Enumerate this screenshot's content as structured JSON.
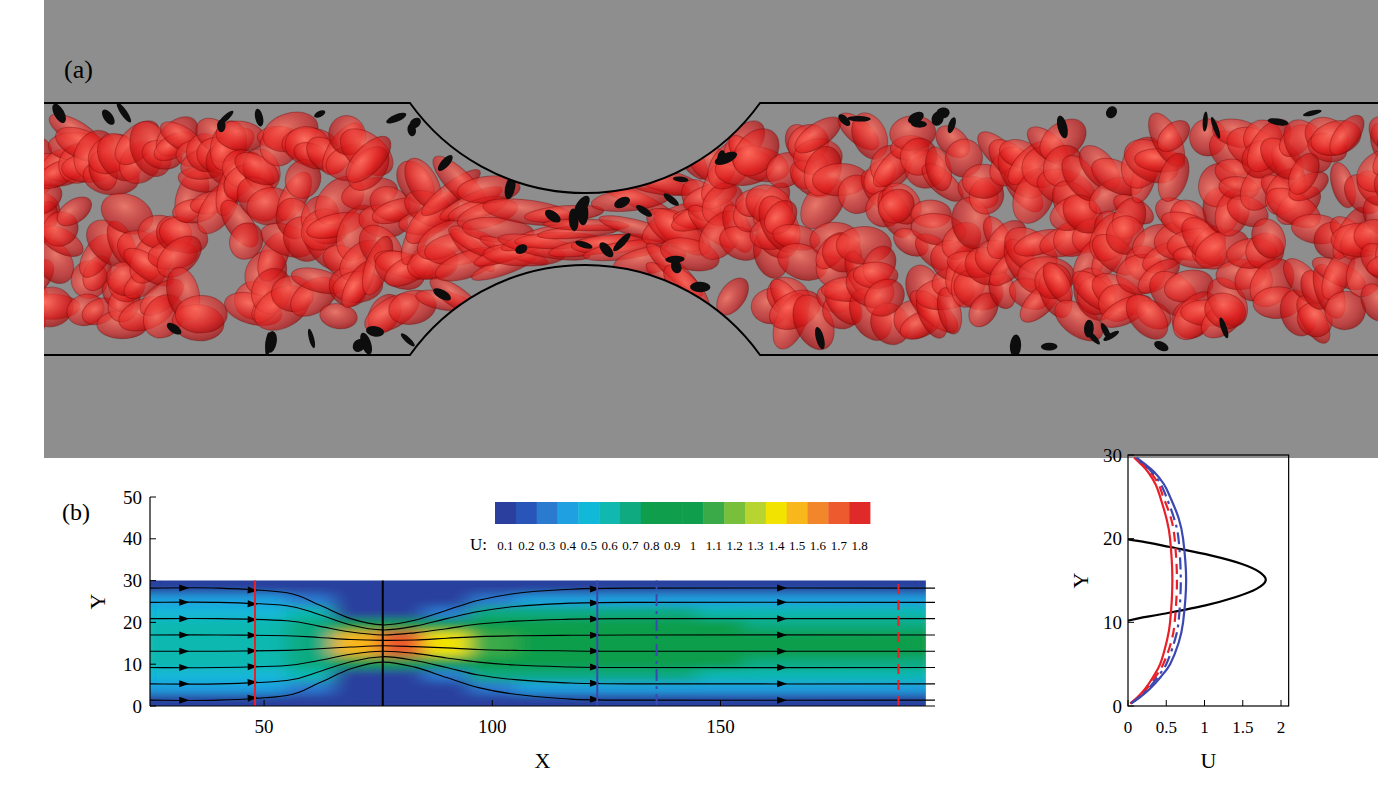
{
  "illustration": {
    "label": "(a)"
  },
  "chart_data": [
    {
      "type": "contour",
      "label": "(b)",
      "x_label": "X",
      "y_label": "Y",
      "xlim": [
        25,
        197
      ],
      "ylim": [
        0,
        50
      ],
      "xticks": [
        50,
        100,
        150
      ],
      "yticks": [
        0,
        10,
        20,
        30,
        40,
        50
      ],
      "x": [
        30,
        40,
        50,
        60,
        70,
        80,
        90,
        100,
        110,
        120,
        130,
        140,
        150,
        160,
        170,
        180,
        190
      ],
      "y": [
        1.5,
        4.5,
        7.5,
        10.5,
        13.5,
        16.5,
        19.5,
        22.5,
        25.5,
        28.5
      ],
      "cells": [
        [
          0.15,
          0.15,
          0.15,
          0.02,
          0.02,
          0.02,
          0.02,
          0.1,
          0.12,
          0.15,
          0.15,
          0.15,
          0.15,
          0.15,
          0.15,
          0.15,
          0.15
        ],
        [
          0.42,
          0.42,
          0.42,
          0.3,
          0.02,
          0.02,
          0.02,
          0.35,
          0.4,
          0.45,
          0.45,
          0.45,
          0.45,
          0.45,
          0.45,
          0.45,
          0.44
        ],
        [
          0.53,
          0.53,
          0.54,
          0.6,
          0.02,
          0.02,
          0.3,
          0.65,
          0.65,
          0.65,
          0.65,
          0.65,
          0.64,
          0.63,
          0.62,
          0.61,
          0.6
        ],
        [
          0.58,
          0.58,
          0.59,
          0.7,
          0.9,
          1.0,
          0.95,
          0.95,
          0.85,
          0.8,
          0.78,
          0.78,
          0.76,
          0.75,
          0.73,
          0.72,
          0.7
        ],
        [
          0.6,
          0.6,
          0.61,
          0.75,
          1.5,
          1.75,
          1.35,
          1.1,
          0.95,
          0.88,
          0.85,
          0.85,
          0.83,
          0.82,
          0.8,
          0.78,
          0.76
        ],
        [
          0.6,
          0.6,
          0.61,
          0.75,
          1.5,
          1.75,
          1.35,
          1.1,
          0.95,
          0.88,
          0.85,
          0.85,
          0.83,
          0.82,
          0.8,
          0.78,
          0.76
        ],
        [
          0.58,
          0.58,
          0.59,
          0.7,
          0.9,
          1.0,
          0.95,
          0.95,
          0.85,
          0.8,
          0.78,
          0.78,
          0.76,
          0.75,
          0.73,
          0.72,
          0.7
        ],
        [
          0.53,
          0.53,
          0.54,
          0.6,
          0.02,
          0.02,
          0.3,
          0.65,
          0.65,
          0.65,
          0.65,
          0.65,
          0.64,
          0.63,
          0.62,
          0.61,
          0.6
        ],
        [
          0.42,
          0.42,
          0.42,
          0.3,
          0.02,
          0.02,
          0.02,
          0.35,
          0.4,
          0.45,
          0.45,
          0.45,
          0.45,
          0.45,
          0.45,
          0.45,
          0.44
        ],
        [
          0.15,
          0.15,
          0.15,
          0.02,
          0.02,
          0.02,
          0.02,
          0.1,
          0.12,
          0.15,
          0.15,
          0.15,
          0.15,
          0.15,
          0.15,
          0.15,
          0.15
        ]
      ],
      "colorbar": {
        "title": "U:",
        "ticks": [
          0.1,
          0.2,
          0.3,
          0.4,
          0.5,
          0.6,
          0.7,
          0.8,
          0.9,
          1,
          1.1,
          1.2,
          1.3,
          1.4,
          1.5,
          1.6,
          1.7,
          1.8
        ],
        "colors": [
          "#2a3f9e",
          "#2a55b8",
          "#2a7ad0",
          "#1fa0e0",
          "#12b8d8",
          "#10b8b0",
          "#10aa80",
          "#0e9e4c",
          "#0e9e4c",
          "#0e9e4c",
          "#3aaa48",
          "#78bf3c",
          "#b8d430",
          "#f2e400",
          "#f8b81c",
          "#f2862a",
          "#ec5a2e",
          "#e02a2a"
        ]
      },
      "streamline_x": [
        25,
        40,
        55,
        62,
        69,
        76,
        83,
        90,
        97,
        105,
        115,
        130,
        197
      ],
      "streamlines": [
        [
          1.4,
          1.4,
          2.5,
          5.5,
          8.9,
          10.5,
          9.3,
          6.8,
          4.4,
          2.8,
          1.8,
          1.4,
          1.4
        ],
        [
          5.3,
          5.3,
          6.1,
          8.2,
          10.6,
          11.8,
          10.9,
          9.2,
          7.4,
          6.3,
          5.6,
          5.3,
          5.3
        ],
        [
          9.2,
          9.2,
          9.7,
          10.9,
          12.4,
          13.1,
          12.6,
          11.5,
          10.5,
          9.8,
          9.4,
          9.2,
          9.2
        ],
        [
          13.1,
          13.1,
          13.3,
          13.7,
          14.1,
          14.4,
          14.2,
          13.9,
          13.5,
          13.3,
          13.2,
          13.1,
          13.1
        ],
        [
          17,
          17,
          16.8,
          16.4,
          15.9,
          15.7,
          15.8,
          16.2,
          16.6,
          16.8,
          16.9,
          17,
          17
        ],
        [
          20.9,
          20.9,
          20.4,
          19.1,
          17.7,
          17,
          17.5,
          18.5,
          19.6,
          20.3,
          20.7,
          20.9,
          20.9
        ],
        [
          24.8,
          24.8,
          24,
          21.9,
          19.4,
          18.2,
          19.1,
          20.9,
          22.6,
          23.8,
          24.5,
          24.8,
          24.8
        ],
        [
          28.2,
          28.2,
          27.1,
          24.2,
          20.9,
          19.4,
          20.5,
          22.9,
          25.3,
          26.9,
          27.8,
          28.2,
          28.2
        ]
      ],
      "sections": [
        {
          "x": 48,
          "color": "#e8202a",
          "line_style": "solid"
        },
        {
          "x": 76,
          "color": "#000000",
          "line_style": "solid"
        },
        {
          "x": 123,
          "color": "#3a48b0",
          "line_style": "solid"
        },
        {
          "x": 136,
          "color": "#3a48b0",
          "line_style": "dash-dot"
        },
        {
          "x": 189,
          "color": "#e8202a",
          "line_style": "dashed"
        }
      ]
    },
    {
      "type": "line",
      "x_label": "U",
      "y_label": "Y",
      "xlim": [
        0,
        2.1
      ],
      "ylim": [
        0,
        30
      ],
      "xticks": [
        0,
        0.5,
        1,
        1.5,
        2
      ],
      "yticks": [
        0,
        10,
        20,
        30
      ],
      "series": [
        {
          "color": "#000000",
          "line_style": "solid",
          "y": [
            10.2,
            10.5,
            11,
            12,
            13,
            14,
            15,
            16,
            17,
            18,
            19,
            19.5,
            19.9
          ],
          "values": [
            0,
            0.15,
            0.45,
            1.0,
            1.4,
            1.68,
            1.8,
            1.72,
            1.48,
            1.08,
            0.55,
            0.28,
            0
          ]
        },
        {
          "color": "#e8202a",
          "line_style": "solid",
          "y": [
            0.3,
            1,
            2,
            3.5,
            5,
            7.5,
            10,
            15,
            20,
            22.5,
            25,
            26.5,
            28,
            29,
            29.7
          ],
          "values": [
            0.03,
            0.12,
            0.22,
            0.33,
            0.42,
            0.5,
            0.55,
            0.58,
            0.55,
            0.5,
            0.42,
            0.36,
            0.26,
            0.16,
            0.08
          ]
        },
        {
          "color": "#e8202a",
          "line_style": "dashed",
          "y": [
            0.3,
            1,
            2,
            3.5,
            5,
            7.5,
            10,
            15,
            20,
            22.5,
            25,
            26.5,
            28,
            29,
            29.7
          ],
          "values": [
            0.03,
            0.13,
            0.24,
            0.36,
            0.46,
            0.56,
            0.61,
            0.64,
            0.61,
            0.56,
            0.46,
            0.4,
            0.29,
            0.18,
            0.09
          ]
        },
        {
          "color": "#3a48b0",
          "line_style": "dash-dot",
          "y": [
            0.3,
            1,
            2,
            3.5,
            5,
            7.5,
            10,
            15,
            20,
            22.5,
            25,
            26.5,
            28,
            29,
            29.7
          ],
          "values": [
            0.04,
            0.14,
            0.26,
            0.39,
            0.5,
            0.6,
            0.66,
            0.69,
            0.66,
            0.6,
            0.5,
            0.43,
            0.31,
            0.19,
            0.1
          ]
        },
        {
          "color": "#3a48b0",
          "line_style": "solid",
          "y": [
            0.3,
            1,
            2,
            3.5,
            5,
            7.5,
            10,
            15,
            20,
            22.5,
            25,
            26.5,
            28,
            29,
            29.7
          ],
          "values": [
            0.04,
            0.15,
            0.28,
            0.43,
            0.55,
            0.66,
            0.72,
            0.76,
            0.72,
            0.66,
            0.55,
            0.47,
            0.34,
            0.21,
            0.11
          ]
        }
      ]
    }
  ]
}
